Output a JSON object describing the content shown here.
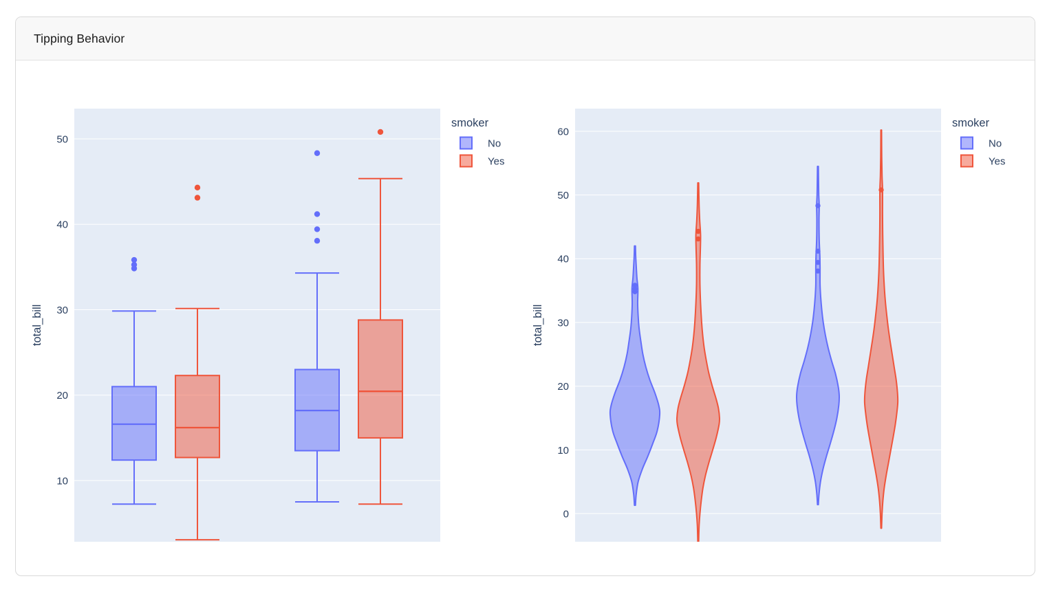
{
  "card": {
    "title": "Tipping Behavior"
  },
  "colors": {
    "series": {
      "No": "#636EFA",
      "Yes": "#EF553B"
    },
    "plot_background": "#E5ECF6",
    "gridline": "#FFFFFF",
    "axis_text": "#2A3F5F"
  },
  "legend": {
    "title": "smoker",
    "entries": [
      {
        "label": "No",
        "color": "#636EFA"
      },
      {
        "label": "Yes",
        "color": "#EF553B"
      }
    ]
  },
  "chart_data": [
    {
      "type": "box",
      "title": "",
      "xlabel": "",
      "ylabel": "total_bill",
      "categories": [
        "",
        ""
      ],
      "yticks": [
        10,
        20,
        30,
        40,
        50
      ],
      "yrange": [
        2.84,
        53.54
      ],
      "grid": true,
      "legend_position": "top-right-outside",
      "series_field": "smoker",
      "boxes": [
        {
          "series": "No",
          "group": 1,
          "lowerfence": 7.25,
          "q1": 12.4,
          "median": 16.6,
          "q3": 21.0,
          "upperfence": 29.85,
          "outliers": [
            34.83,
            35.26,
            35.83
          ]
        },
        {
          "series": "Yes",
          "group": 1,
          "lowerfence": 3.07,
          "q1": 12.7,
          "median": 16.2,
          "q3": 22.3,
          "upperfence": 30.14,
          "outliers": [
            43.11,
            44.3
          ]
        },
        {
          "series": "No",
          "group": 2,
          "lowerfence": 7.51,
          "q1": 13.5,
          "median": 18.2,
          "q3": 23.0,
          "upperfence": 34.3,
          "outliers": [
            38.07,
            39.42,
            41.19,
            48.33
          ]
        },
        {
          "series": "Yes",
          "group": 2,
          "lowerfence": 7.25,
          "q1": 15.0,
          "median": 20.45,
          "q3": 28.8,
          "upperfence": 45.35,
          "outliers": [
            50.81
          ]
        }
      ]
    },
    {
      "type": "violin",
      "title": "",
      "xlabel": "",
      "ylabel": "total_bill",
      "categories": [
        "",
        ""
      ],
      "yticks": [
        0,
        10,
        20,
        30,
        40,
        50,
        60
      ],
      "yrange": [
        -4.42,
        63.56
      ],
      "grid": true,
      "legend_position": "top-right-outside",
      "series_field": "smoker",
      "violins": [
        {
          "series": "No",
          "group": 1,
          "span_min": 1.3,
          "span_max": 42.0,
          "width_scale": 1.0,
          "points_shown": [
            34.83,
            35.26,
            35.83
          ],
          "profile": [
            [
              1.3,
              0.02
            ],
            [
              3,
              0.05
            ],
            [
              5,
              0.13
            ],
            [
              7,
              0.3
            ],
            [
              9,
              0.52
            ],
            [
              11,
              0.72
            ],
            [
              13,
              0.9
            ],
            [
              15.5,
              1.0
            ],
            [
              17,
              0.96
            ],
            [
              19,
              0.8
            ],
            [
              21,
              0.6
            ],
            [
              23,
              0.44
            ],
            [
              25,
              0.32
            ],
            [
              27,
              0.24
            ],
            [
              29,
              0.17
            ],
            [
              31,
              0.13
            ],
            [
              33,
              0.11
            ],
            [
              35.3,
              0.12
            ],
            [
              37,
              0.08
            ],
            [
              39,
              0.05
            ],
            [
              40.5,
              0.03
            ],
            [
              42,
              0.02
            ]
          ]
        },
        {
          "series": "Yes",
          "group": 1,
          "span_min": -4.4,
          "span_max": 51.9,
          "width_scale": 0.86,
          "points_shown": [
            43.11,
            44.3
          ],
          "profile": [
            [
              -4.4,
              0.02
            ],
            [
              -2,
              0.04
            ],
            [
              0,
              0.08
            ],
            [
              2,
              0.14
            ],
            [
              4,
              0.22
            ],
            [
              6,
              0.34
            ],
            [
              8,
              0.5
            ],
            [
              10,
              0.68
            ],
            [
              12,
              0.85
            ],
            [
              14,
              0.98
            ],
            [
              15,
              1.0
            ],
            [
              16.5,
              0.95
            ],
            [
              18,
              0.84
            ],
            [
              20,
              0.66
            ],
            [
              22,
              0.5
            ],
            [
              24,
              0.38
            ],
            [
              26,
              0.28
            ],
            [
              28,
              0.21
            ],
            [
              30,
              0.16
            ],
            [
              33,
              0.11
            ],
            [
              36,
              0.08
            ],
            [
              39,
              0.08
            ],
            [
              41.5,
              0.1
            ],
            [
              43.7,
              0.11
            ],
            [
              46,
              0.07
            ],
            [
              48.5,
              0.04
            ],
            [
              51.9,
              0.02
            ]
          ]
        },
        {
          "series": "No",
          "group": 2,
          "span_min": 1.4,
          "span_max": 54.5,
          "width_scale": 0.86,
          "points_shown": [
            38.07,
            39.42,
            41.19,
            48.33
          ],
          "profile": [
            [
              1.4,
              0.02
            ],
            [
              3,
              0.05
            ],
            [
              5,
              0.12
            ],
            [
              7,
              0.24
            ],
            [
              9,
              0.4
            ],
            [
              11,
              0.58
            ],
            [
              13,
              0.75
            ],
            [
              15,
              0.89
            ],
            [
              17,
              0.98
            ],
            [
              18.5,
              1.0
            ],
            [
              20,
              0.95
            ],
            [
              22,
              0.82
            ],
            [
              24,
              0.64
            ],
            [
              26,
              0.48
            ],
            [
              28,
              0.35
            ],
            [
              30,
              0.25
            ],
            [
              32,
              0.18
            ],
            [
              34,
              0.13
            ],
            [
              36,
              0.1
            ],
            [
              38.5,
              0.1
            ],
            [
              40.5,
              0.09
            ],
            [
              43,
              0.06
            ],
            [
              46,
              0.05
            ],
            [
              48.3,
              0.06
            ],
            [
              50,
              0.04
            ],
            [
              52,
              0.03
            ],
            [
              54.5,
              0.02
            ]
          ]
        },
        {
          "series": "Yes",
          "group": 2,
          "span_min": -2.3,
          "span_max": 60.2,
          "width_scale": 0.67,
          "points_shown": [
            50.81
          ],
          "profile": [
            [
              -2.3,
              0.02
            ],
            [
              0,
              0.05
            ],
            [
              2,
              0.1
            ],
            [
              4,
              0.18
            ],
            [
              6,
              0.3
            ],
            [
              8,
              0.44
            ],
            [
              10,
              0.58
            ],
            [
              12,
              0.72
            ],
            [
              14,
              0.85
            ],
            [
              16,
              0.95
            ],
            [
              17.5,
              1.0
            ],
            [
              19,
              0.98
            ],
            [
              21,
              0.9
            ],
            [
              23,
              0.78
            ],
            [
              25,
              0.66
            ],
            [
              27,
              0.54
            ],
            [
              29,
              0.43
            ],
            [
              31,
              0.34
            ],
            [
              33,
              0.26
            ],
            [
              35,
              0.2
            ],
            [
              38,
              0.14
            ],
            [
              41,
              0.11
            ],
            [
              44,
              0.09
            ],
            [
              47,
              0.08
            ],
            [
              50.8,
              0.08
            ],
            [
              53,
              0.05
            ],
            [
              56,
              0.03
            ],
            [
              60.2,
              0.02
            ]
          ]
        }
      ]
    }
  ]
}
